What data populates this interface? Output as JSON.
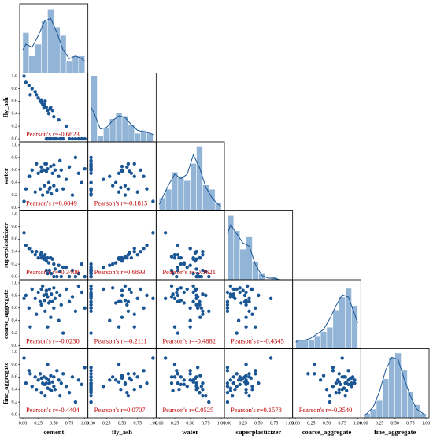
{
  "chart_data": {
    "type": "pairplot",
    "variables": [
      "cement",
      "fly_ash",
      "water",
      "superplasticizer",
      "coarse_aggregate",
      "fine_aggregate"
    ],
    "data": [
      [
        0.05,
        0.1,
        0.15,
        0.2,
        0.22,
        0.25,
        0.28,
        0.3,
        0.32,
        0.34,
        0.35,
        0.36,
        0.38,
        0.4,
        0.4,
        0.42,
        0.43,
        0.45,
        0.46,
        0.48,
        0.5,
        0.5,
        0.52,
        0.55,
        0.58,
        0.6,
        0.62,
        0.65,
        0.7,
        0.75,
        0.8,
        0.85,
        0.9,
        0.95,
        1.0,
        0.02,
        0.12,
        0.38,
        0.44,
        0.3
      ],
      [
        0.9,
        0.85,
        0.8,
        0.75,
        0.7,
        0.65,
        0.6,
        0.58,
        0.55,
        0.5,
        0.55,
        0.6,
        0.5,
        0.45,
        0,
        0.4,
        0,
        0.5,
        0,
        0.45,
        0,
        0.35,
        0,
        0,
        0.3,
        0,
        0,
        0,
        0.2,
        0,
        0,
        0,
        0,
        0,
        0,
        1.0,
        0.7,
        0,
        0.48,
        0.62
      ],
      [
        0.3,
        0.5,
        0.6,
        0.25,
        0.7,
        0.55,
        0.3,
        0.65,
        0.2,
        0.6,
        0.35,
        0.7,
        0.58,
        0.25,
        0.62,
        0.4,
        0.3,
        0.66,
        0.22,
        0.55,
        0.68,
        0.35,
        0.6,
        0.28,
        0.5,
        0.75,
        0.6,
        0.3,
        0.45,
        0.65,
        0.2,
        0.8,
        0.55,
        0.4,
        0.62,
        0.1,
        0.5,
        0.7,
        0.32,
        0.58
      ],
      [
        0.5,
        0.45,
        0.4,
        0.35,
        0.4,
        0.3,
        0.35,
        0.3,
        0.32,
        0.28,
        0.3,
        0.35,
        0.25,
        0.3,
        0.05,
        0.22,
        0.1,
        0.3,
        0.05,
        0.28,
        0,
        0.2,
        0.12,
        0,
        0.18,
        0.08,
        0,
        0.15,
        0.15,
        0,
        0.1,
        0,
        0.05,
        0.2,
        0,
        0.7,
        0.45,
        0.1,
        0.3,
        0.38
      ],
      [
        0.8,
        0.6,
        0.9,
        0.75,
        0.5,
        0.85,
        0.7,
        0.65,
        0.95,
        0.8,
        0.72,
        0.55,
        0.88,
        0.3,
        0.78,
        0.68,
        0.9,
        0.45,
        0.82,
        0.7,
        0.6,
        0.92,
        0.75,
        0.85,
        0.4,
        0.8,
        0.65,
        0.2,
        0.9,
        0.7,
        0.78,
        0.55,
        0.95,
        0.85,
        0.6,
        0.75,
        0.3,
        0.82,
        0.7,
        0.9
      ],
      [
        0.5,
        0.7,
        0.45,
        0.6,
        0.4,
        0.55,
        0.65,
        0.35,
        0.5,
        0.6,
        0.48,
        0.3,
        0.58,
        0.8,
        0.42,
        0.55,
        0.5,
        0.62,
        0.38,
        0.52,
        0.45,
        0.6,
        0.4,
        0.7,
        0.55,
        0.3,
        0.5,
        0.65,
        0.45,
        0.35,
        0.6,
        0.2,
        0.55,
        0.48,
        0.75,
        0.9,
        0.65,
        0.5,
        0.4,
        0.58
      ]
    ],
    "bins": [
      0,
      0.1,
      0.2,
      0.3,
      0.4,
      0.5,
      0.6,
      0.7,
      0.8,
      0.9,
      1.0
    ],
    "kde_x": [
      0,
      0.05,
      0.15,
      0.25,
      0.35,
      0.45,
      0.55,
      0.65,
      0.75,
      0.85,
      0.95,
      1.0
    ],
    "histograms": [
      {
        "counts": [
          14,
          6,
          10,
          18,
          22,
          16,
          13,
          4,
          6,
          6
        ],
        "kde_y": [
          8,
          10,
          9,
          13,
          18,
          19,
          14,
          8,
          5,
          6,
          5,
          4
        ],
        "ylim": [
          0,
          24
        ]
      },
      {
        "counts": [
          46,
          4,
          10,
          16,
          20,
          18,
          12,
          6,
          8,
          6
        ],
        "kde_y": [
          24,
          20,
          9,
          10,
          15,
          18,
          17,
          12,
          8,
          7,
          6,
          5
        ],
        "ylim": [
          0,
          48
        ]
      },
      {
        "counts": [
          6,
          10,
          18,
          16,
          14,
          22,
          30,
          12,
          10,
          4
        ],
        "kde_y": [
          3,
          6,
          12,
          17,
          15,
          17,
          26,
          20,
          11,
          6,
          3,
          2
        ],
        "ylim": [
          0,
          32
        ]
      },
      {
        "counts": [
          42,
          32,
          20,
          28,
          12,
          4,
          0,
          2,
          0,
          0
        ],
        "kde_y": [
          30,
          36,
          30,
          24,
          22,
          10,
          3,
          1,
          1,
          0,
          0,
          0
        ],
        "ylim": [
          0,
          45
        ]
      },
      {
        "counts": [
          4,
          4,
          4,
          6,
          8,
          10,
          18,
          24,
          28,
          20
        ],
        "kde_y": [
          3,
          4,
          4,
          5,
          7,
          9,
          14,
          20,
          25,
          24,
          16,
          12
        ],
        "ylim": [
          0,
          32
        ]
      },
      {
        "counts": [
          2,
          4,
          8,
          18,
          28,
          30,
          22,
          12,
          6,
          2
        ],
        "kde_y": [
          1,
          2,
          5,
          12,
          22,
          28,
          27,
          18,
          10,
          4,
          2,
          1
        ],
        "ylim": [
          0,
          32
        ]
      }
    ],
    "correlations": [
      {
        "x": "cement",
        "y": "fly_ash",
        "label": "Pearson's r=-0.6623"
      },
      {
        "x": "cement",
        "y": "water",
        "label": "Pearson's r=0.0049"
      },
      {
        "x": "fly_ash",
        "y": "water",
        "label": "Pearson's r=-0.1815"
      },
      {
        "x": "cement",
        "y": "superplasticizer",
        "label": "Pearson's r=-0.3408"
      },
      {
        "x": "fly_ash",
        "y": "superplasticizer",
        "label": "Pearson's r=0.6893"
      },
      {
        "x": "water",
        "y": "superplasticizer",
        "label": "Pearson's r=-0.1621"
      },
      {
        "x": "cement",
        "y": "coarse_aggregate",
        "label": "Pearson's r=-0.0230"
      },
      {
        "x": "fly_ash",
        "y": "coarse_aggregate",
        "label": "Pearson's r=-0.2111"
      },
      {
        "x": "water",
        "y": "coarse_aggregate",
        "label": "Pearson's r=-0.4882"
      },
      {
        "x": "superplasticizer",
        "y": "coarse_aggregate",
        "label": "Pearson's r=-0.4345"
      },
      {
        "x": "cement",
        "y": "fine_aggregate",
        "label": "Pearson's r=-0.4404"
      },
      {
        "x": "fly_ash",
        "y": "fine_aggregate",
        "label": "Pearson's r=0.0707"
      },
      {
        "x": "water",
        "y": "fine_aggregate",
        "label": "Pearson's r=0.0525"
      },
      {
        "x": "superplasticizer",
        "y": "fine_aggregate",
        "label": "Pearson's r=0.1578"
      },
      {
        "x": "coarse_aggregate",
        "y": "fine_aggregate",
        "label": "Pearson's r=-0.3540"
      }
    ],
    "xlim": [
      -0.05,
      1.05
    ],
    "ylim": [
      -0.05,
      1.05
    ],
    "xticks": [
      {
        "value": 0,
        "label": "0.00"
      },
      {
        "value": 0.25,
        "label": "0.25"
      },
      {
        "value": 0.5,
        "label": "0.50"
      },
      {
        "value": 0.75,
        "label": "0.75"
      },
      {
        "value": 1,
        "label": "1.00"
      }
    ],
    "yticks": [
      {
        "value": 0,
        "label": "0.0"
      },
      {
        "value": 0.2,
        "label": "0.2"
      },
      {
        "value": 0.4,
        "label": "0.4"
      },
      {
        "value": 0.6,
        "label": "0.6"
      },
      {
        "value": 0.8,
        "label": "0.8"
      },
      {
        "value": 1,
        "label": "1.0"
      }
    ],
    "point_color": "#1a5594",
    "bar_color": "#92b4d6",
    "kde_color": "#1a5594",
    "annotation_color": "#c00000"
  }
}
